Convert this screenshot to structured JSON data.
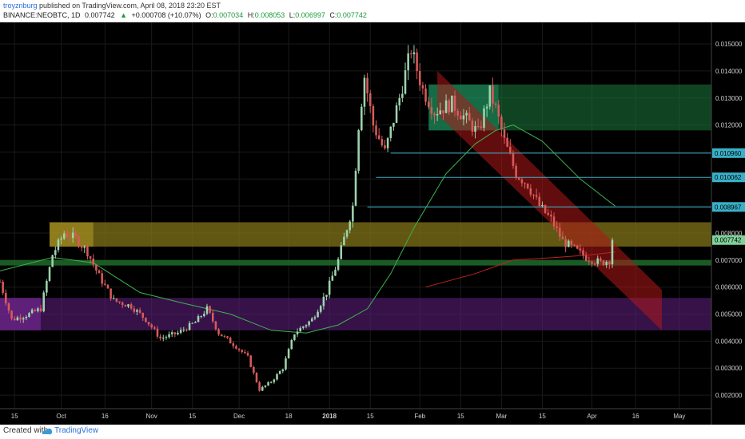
{
  "header": {
    "author": "troyznburg",
    "published": "published on TradingView.com, April 08, 2018 23:20 EST",
    "symbol": "BINANCE:NEOBTC, 1D",
    "last": "0.007742",
    "change": "+0.000708 (+10.07%)",
    "o_label": "O:",
    "o": "0.007034",
    "h_label": "H:",
    "h": "0.008053",
    "l_label": "L:",
    "l": "0.006997",
    "c_label": "C:",
    "c": "0.007742"
  },
  "footer": {
    "created": "Created with",
    "brand": "TradingView"
  },
  "colors": {
    "background": "#000000",
    "up": "#9ed3ad",
    "down": "#d95a5a",
    "grid": "#1a1a1a"
  },
  "chart_data": {
    "type": "candlestick",
    "ylim": [
      0.0015,
      0.0158
    ],
    "yticks": [
      "0.015000",
      "0.014000",
      "0.013000",
      "0.012000",
      "0.011000",
      "0.010000",
      "0.009000",
      "0.008000",
      "0.007000",
      "0.006000",
      "0.005000",
      "0.004000",
      "0.003000",
      "0.002000"
    ],
    "xrange": [
      "2017-09-10",
      "2018-05-12"
    ],
    "xticks": [
      {
        "date": "2017-09-15",
        "label": "15"
      },
      {
        "date": "2017-10-01",
        "label": "Oct"
      },
      {
        "date": "2017-10-16",
        "label": "16"
      },
      {
        "date": "2017-11-01",
        "label": "Nov"
      },
      {
        "date": "2017-11-15",
        "label": "15"
      },
      {
        "date": "2017-12-01",
        "label": "Dec"
      },
      {
        "date": "2017-12-18",
        "label": "18"
      },
      {
        "date": "2018-01-01",
        "label": "2018"
      },
      {
        "date": "2018-01-15",
        "label": "15"
      },
      {
        "date": "2018-02-01",
        "label": "Feb"
      },
      {
        "date": "2018-02-15",
        "label": "15"
      },
      {
        "date": "2018-03-01",
        "label": "Mar"
      },
      {
        "date": "2018-03-15",
        "label": "15"
      },
      {
        "date": "2018-04-01",
        "label": "Apr"
      },
      {
        "date": "2018-04-16",
        "label": "16"
      },
      {
        "date": "2018-05-01",
        "label": "May"
      }
    ],
    "price_labels": [
      {
        "value": 0.01096,
        "label": "0.010960",
        "color": "#3ab0c8"
      },
      {
        "value": 0.010062,
        "label": "0.010062",
        "color": "#3ab0c8"
      },
      {
        "value": 0.008967,
        "label": "0.008967",
        "color": "#3ab0c8"
      },
      {
        "value": 0.007742,
        "label": "0.007742",
        "color": "#7fd19a"
      }
    ],
    "ohlc_anchors": [
      [
        "2017-09-10",
        0.0062
      ],
      [
        "2017-09-14",
        0.0048
      ],
      [
        "2017-09-20",
        0.005
      ],
      [
        "2017-09-24",
        0.0052
      ],
      [
        "2017-09-28",
        0.0072
      ],
      [
        "2017-10-02",
        0.008
      ],
      [
        "2017-10-06",
        0.0078
      ],
      [
        "2017-10-10",
        0.0073
      ],
      [
        "2017-10-14",
        0.0064
      ],
      [
        "2017-10-19",
        0.0055
      ],
      [
        "2017-10-25",
        0.0053
      ],
      [
        "2017-10-30",
        0.0048
      ],
      [
        "2017-11-04",
        0.0041
      ],
      [
        "2017-11-10",
        0.0043
      ],
      [
        "2017-11-16",
        0.0047
      ],
      [
        "2017-11-20",
        0.0052
      ],
      [
        "2017-11-24",
        0.0043
      ],
      [
        "2017-11-30",
        0.0038
      ],
      [
        "2017-12-04",
        0.0034
      ],
      [
        "2017-12-08",
        0.0022
      ],
      [
        "2017-12-12",
        0.0025
      ],
      [
        "2017-12-16",
        0.003
      ],
      [
        "2017-12-20",
        0.0043
      ],
      [
        "2017-12-26",
        0.0048
      ],
      [
        "2017-12-31",
        0.0058
      ],
      [
        "2018-01-04",
        0.007
      ],
      [
        "2018-01-07",
        0.0082
      ],
      [
        "2018-01-09",
        0.009
      ],
      [
        "2018-01-11",
        0.012
      ],
      [
        "2018-01-13",
        0.0138
      ],
      [
        "2018-01-16",
        0.012
      ],
      [
        "2018-01-20",
        0.011
      ],
      [
        "2018-01-25",
        0.013
      ],
      [
        "2018-01-29",
        0.0148
      ],
      [
        "2018-02-02",
        0.0133
      ],
      [
        "2018-02-06",
        0.0125
      ],
      [
        "2018-02-12",
        0.0128
      ],
      [
        "2018-02-17",
        0.0122
      ],
      [
        "2018-02-21",
        0.0117
      ],
      [
        "2018-02-25",
        0.0132
      ],
      [
        "2018-02-27",
        0.0126
      ],
      [
        "2018-03-02",
        0.0114
      ],
      [
        "2018-03-06",
        0.0102
      ],
      [
        "2018-03-10",
        0.0098
      ],
      [
        "2018-03-14",
        0.009
      ],
      [
        "2018-03-18",
        0.0085
      ],
      [
        "2018-03-22",
        0.0077
      ],
      [
        "2018-03-26",
        0.0074
      ],
      [
        "2018-03-30",
        0.0071
      ],
      [
        "2018-04-04",
        0.0069
      ],
      [
        "2018-04-07",
        0.007
      ],
      [
        "2018-04-08",
        0.0077
      ]
    ],
    "sma_slow": [
      [
        "2017-09-10",
        0.0066
      ],
      [
        "2017-09-28",
        0.0071
      ],
      [
        "2017-10-12",
        0.0069
      ],
      [
        "2017-10-28",
        0.0058
      ],
      [
        "2017-11-12",
        0.0054
      ],
      [
        "2017-11-28",
        0.005
      ],
      [
        "2017-12-12",
        0.0044
      ],
      [
        "2017-12-24",
        0.0043
      ],
      [
        "2018-01-04",
        0.0046
      ],
      [
        "2018-01-14",
        0.0052
      ],
      [
        "2018-01-22",
        0.0065
      ],
      [
        "2018-01-30",
        0.0082
      ],
      [
        "2018-02-10",
        0.0102
      ],
      [
        "2018-02-20",
        0.0113
      ],
      [
        "2018-02-27",
        0.0118
      ],
      [
        "2018-03-05",
        0.012
      ],
      [
        "2018-03-15",
        0.0114
      ],
      [
        "2018-03-28",
        0.01
      ],
      [
        "2018-04-09",
        0.009
      ]
    ],
    "sma_fast": [
      [
        "2018-02-03",
        0.006
      ],
      [
        "2018-02-20",
        0.0065
      ],
      [
        "2018-03-05",
        0.007
      ],
      [
        "2018-03-20",
        0.0071
      ],
      [
        "2018-04-01",
        0.0072
      ],
      [
        "2018-04-09",
        0.0073
      ]
    ],
    "zones": [
      {
        "from": "2018-02-04",
        "to": "2018-02-28",
        "low": 0.0118,
        "high": 0.0135,
        "color": "#1e8f5c",
        "alpha": 0.75
      },
      {
        "from": "2018-02-28",
        "to": "2018-05-21",
        "low": 0.0118,
        "high": 0.0135,
        "color": "#1e7a3c",
        "alpha": 0.55
      },
      {
        "from": "2017-09-27",
        "to": "2018-05-21",
        "low": 0.0075,
        "high": 0.0084,
        "color": "#8a7a1a",
        "alpha": 0.7
      },
      {
        "from": "2017-09-27",
        "to": "2017-10-12",
        "low": 0.0075,
        "high": 0.0084,
        "color": "#b59a22",
        "alpha": 0.55
      },
      {
        "from": "2017-09-06",
        "to": "2018-05-21",
        "low": 0.0068,
        "high": 0.007,
        "color": "#1f6b2a",
        "alpha": 0.85
      },
      {
        "from": "2017-09-06",
        "to": "2018-05-21",
        "low": 0.0044,
        "high": 0.0056,
        "color": "#5a1e7a",
        "alpha": 0.6
      },
      {
        "from": "2017-09-06",
        "to": "2017-09-24",
        "low": 0.0044,
        "high": 0.0056,
        "color": "#7a2a9a",
        "alpha": 0.6
      }
    ],
    "channel": {
      "color": "#b01818",
      "alpha": 0.55,
      "points": [
        [
          "2018-02-07",
          0.014
        ],
        [
          "2018-04-25",
          0.0059
        ],
        [
          "2018-04-25",
          0.0044
        ],
        [
          "2018-02-07",
          0.0124
        ]
      ]
    },
    "hlines": [
      {
        "from": "2018-01-22",
        "to": "2018-05-21",
        "value": 0.01096,
        "color": "#3ab0c8"
      },
      {
        "from": "2018-01-17",
        "to": "2018-05-21",
        "value": 0.010062,
        "color": "#3ab0c8"
      },
      {
        "from": "2018-01-14",
        "to": "2018-05-21",
        "value": 0.008967,
        "color": "#3ab0c8"
      }
    ]
  }
}
